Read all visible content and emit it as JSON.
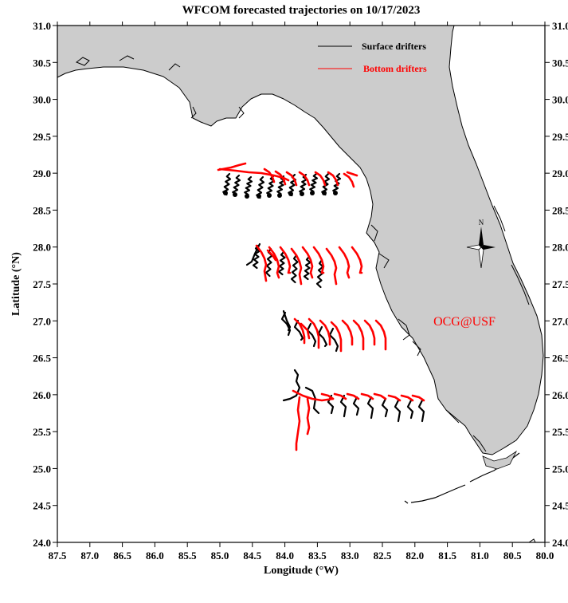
{
  "title": "WFCOM forecasted trajectories on 10/17/2023",
  "xlabel": "Longitude (°W)",
  "ylabel": "Latitude (°N)",
  "x_ticks": [
    "87.5",
    "87.0",
    "86.5",
    "86.0",
    "85.5",
    "85.0",
    "84.5",
    "84.0",
    "83.5",
    "83.0",
    "82.5",
    "82.0",
    "81.5",
    "81.0",
    "80.5",
    "80.0"
  ],
  "y_ticks": [
    "31.0",
    "30.5",
    "30.0",
    "29.5",
    "29.0",
    "28.5",
    "28.0",
    "27.5",
    "27.0",
    "26.5",
    "26.0",
    "25.5",
    "25.0",
    "24.5",
    "24.0"
  ],
  "legend": {
    "surface_label": "Surface drifters",
    "bottom_label": "Bottom drifters",
    "surface_color": "#000000",
    "bottom_color": "#ff0000"
  },
  "watermark": "OCG@USF",
  "compass_label": "N",
  "colors": {
    "land": "#cccccc",
    "coast": "#000000",
    "water": "#ffffff",
    "accent": "#ff0000"
  },
  "chart_data": {
    "type": "map",
    "xlim": [
      87.5,
      80.0
    ],
    "ylim": [
      24.0,
      31.0
    ],
    "x_axis": "Longitude (°W)",
    "y_axis": "Latitude (°N)",
    "drifter_release_rows_lat": [
      29.0,
      28.0,
      27.0,
      26.0
    ],
    "series": [
      {
        "name": "Surface drifters",
        "color": "#000000"
      },
      {
        "name": "Bottom drifters",
        "color": "#ff0000"
      }
    ]
  }
}
